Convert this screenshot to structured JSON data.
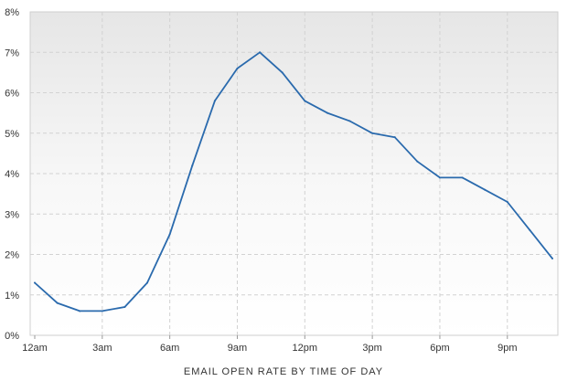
{
  "chart_data": {
    "type": "line",
    "title": "",
    "xlabel": "EMAIL OPEN RATE BY TIME OF DAY",
    "ylabel": "",
    "x": [
      "12am",
      "1am",
      "2am",
      "3am",
      "4am",
      "5am",
      "6am",
      "7am",
      "8am",
      "9am",
      "10am",
      "11am",
      "12pm",
      "1pm",
      "2pm",
      "3pm",
      "4pm",
      "5pm",
      "6pm",
      "7pm",
      "8pm",
      "9pm",
      "10pm",
      "11pm"
    ],
    "xticks": [
      "12am",
      "3am",
      "6am",
      "9am",
      "12pm",
      "3pm",
      "6pm",
      "9pm"
    ],
    "ylim": [
      0,
      8
    ],
    "yticks": [
      "0%",
      "1%",
      "2%",
      "3%",
      "4%",
      "5%",
      "6%",
      "7%",
      "8%"
    ],
    "series": [
      {
        "values": [
          1.3,
          0.8,
          0.6,
          0.6,
          0.7,
          1.3,
          2.5,
          4.2,
          5.8,
          6.6,
          7.0,
          6.5,
          5.8,
          5.5,
          5.3,
          5.0,
          4.9,
          4.3,
          3.9,
          3.9,
          3.6,
          3.3,
          2.6,
          1.9
        ]
      }
    ],
    "grid": true,
    "line_color": "#2a6aad"
  }
}
